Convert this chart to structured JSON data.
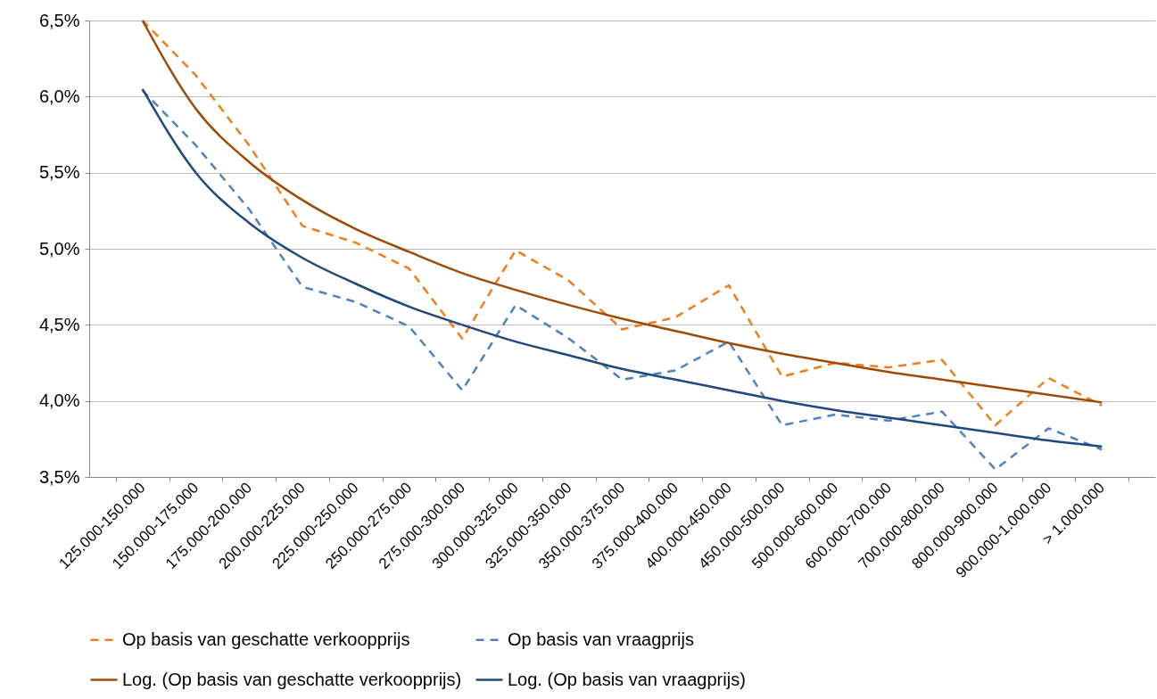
{
  "chart_data": {
    "type": "line",
    "categories": [
      "125.000-150.000",
      "150.000-175.000",
      "175.000-200.000",
      "200.000-225.000",
      "225.000-250.000",
      "250.000-275.000",
      "275.000-300.000",
      "300.000-325.000",
      "325.000-350.000",
      "350.000-375.000",
      "375.000-400.000",
      "400.000-450.000",
      "450.000-500.000",
      "500.000-600.000",
      "600.000-700.000",
      "700.000-800.000",
      "800.000-900.000",
      "900.000-1.000.000",
      "> 1.000.000"
    ],
    "series": [
      {
        "name": "Op basis van geschatte verkoopprijs",
        "color": "#f07d1a",
        "line_style": "dashed",
        "values": [
          6.5,
          6.14,
          5.68,
          5.15,
          5.04,
          4.87,
          4.41,
          4.99,
          4.79,
          4.47,
          4.55,
          4.76,
          4.16,
          4.25,
          4.22,
          4.27,
          3.84,
          4.15,
          3.97
        ]
      },
      {
        "name": "Op basis van vraagprijs",
        "color": "#4f81bd",
        "line_style": "dashed",
        "values": [
          6.04,
          5.68,
          5.26,
          4.75,
          4.65,
          4.49,
          4.07,
          4.63,
          4.41,
          4.14,
          4.2,
          4.39,
          3.84,
          3.91,
          3.87,
          3.93,
          3.55,
          3.82,
          3.68
        ]
      },
      {
        "name": "Log. (Op basis van geschatte verkoopprijs)",
        "color": "#9c4a06",
        "line_style": "solid",
        "values": [
          6.5,
          5.92,
          5.57,
          5.32,
          5.13,
          4.98,
          4.84,
          4.73,
          4.63,
          4.54,
          4.46,
          4.38,
          4.31,
          4.25,
          4.19,
          4.14,
          4.09,
          4.04,
          3.99
        ]
      },
      {
        "name": "Log. (Op basis van vraagprijs)",
        "color": "#1f497d",
        "line_style": "solid",
        "values": [
          6.05,
          5.5,
          5.17,
          4.94,
          4.77,
          4.62,
          4.5,
          4.39,
          4.3,
          4.21,
          4.14,
          4.07,
          4.0,
          3.94,
          3.89,
          3.84,
          3.79,
          3.74,
          3.7
        ]
      }
    ],
    "ylim": [
      3.5,
      6.5
    ],
    "yticks": [
      {
        "value": 3.5,
        "label": "3,5%"
      },
      {
        "value": 4.0,
        "label": "4,0%"
      },
      {
        "value": 4.5,
        "label": "4,5%"
      },
      {
        "value": 5.0,
        "label": "5,0%"
      },
      {
        "value": 5.5,
        "label": "5,5%"
      },
      {
        "value": 6.0,
        "label": "6,0%"
      },
      {
        "value": 6.5,
        "label": "6,5%"
      }
    ],
    "grid": "y",
    "legend": "bottom"
  }
}
